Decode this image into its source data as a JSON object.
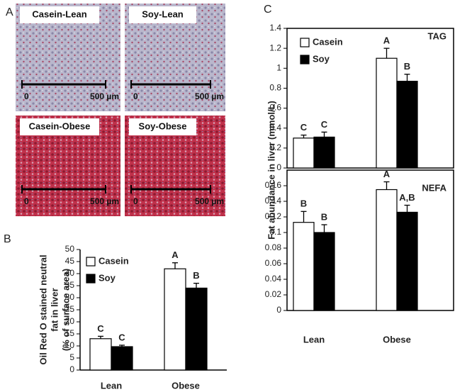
{
  "panel_labels": [
    "A",
    "B",
    "C"
  ],
  "micrographs": [
    {
      "label": "Casein-Lean",
      "scale_start": "0",
      "scale_end": "500 µm"
    },
    {
      "label": "Soy-Lean",
      "scale_start": "0",
      "scale_end": "500 µm"
    },
    {
      "label": "Casein-Obese",
      "scale_start": "0",
      "scale_end": "500 µm"
    },
    {
      "label": "Soy-Obese",
      "scale_start": "0",
      "scale_end": "500 µm"
    }
  ],
  "chart_data": [
    {
      "type": "bar",
      "y_label": [
        "Oil Red O stained neutral",
        "fat in liver",
        "(% of surface area)"
      ],
      "categories": [
        "Lean",
        "Obese"
      ],
      "series": [
        {
          "name": "Casein",
          "color": "#ffffff",
          "values": [
            13,
            42
          ],
          "errors": [
            1,
            2.5
          ],
          "letters": [
            "C",
            "A"
          ]
        },
        {
          "name": "Soy",
          "color": "#000000",
          "values": [
            9.7,
            34
          ],
          "errors": [
            0.6,
            2
          ],
          "letters": [
            "C",
            "B"
          ]
        }
      ],
      "ylim": [
        0,
        50
      ],
      "yticks": [
        0,
        5,
        10,
        15,
        20,
        25,
        30,
        35,
        40,
        45,
        50
      ],
      "grid": false
    },
    {
      "type": "bar",
      "y_label": "Fat abundance in liver (mmol/L)",
      "annotation": "TAG",
      "series": [
        {
          "name": "Casein",
          "color": "#ffffff",
          "values": [
            0.3,
            1.1
          ],
          "errors": [
            0.03,
            0.1
          ],
          "letters": [
            "C",
            "A"
          ]
        },
        {
          "name": "Soy",
          "color": "#000000",
          "values": [
            0.31,
            0.87
          ],
          "errors": [
            0.05,
            0.07
          ],
          "letters": [
            "C",
            "B"
          ]
        }
      ],
      "ylim": [
        0,
        1.4
      ],
      "yticks": [
        0,
        0.2,
        0.4,
        0.6,
        0.8,
        1,
        1.2,
        1.4
      ],
      "grid": false
    },
    {
      "type": "bar",
      "annotation": "NEFA",
      "categories": [
        "Lean",
        "Obese"
      ],
      "series": [
        {
          "color": "#ffffff",
          "values": [
            0.113,
            0.155
          ],
          "errors": [
            0.014,
            0.01
          ],
          "letters": [
            "B",
            "A"
          ]
        },
        {
          "color": "#000000",
          "values": [
            0.1,
            0.126
          ],
          "errors": [
            0.01,
            0.009
          ],
          "letters": [
            "B",
            "A,B"
          ]
        }
      ],
      "ylim": [
        0,
        0.18
      ],
      "yticks": [
        0,
        0.02,
        0.04,
        0.06,
        0.08,
        0.1,
        0.12,
        0.14,
        0.16
      ],
      "grid": false
    }
  ]
}
